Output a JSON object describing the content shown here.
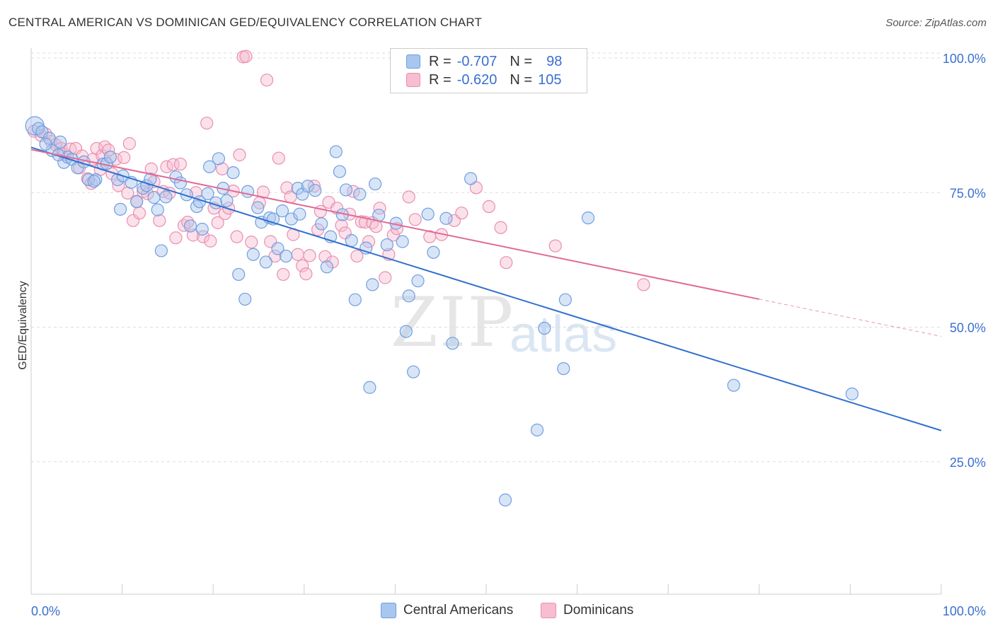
{
  "title": "CENTRAL AMERICAN VS DOMINICAN GED/EQUIVALENCY CORRELATION CHART",
  "source": "Source: ZipAtlas.com",
  "watermark": {
    "zip": "ZIP",
    "atlas": "atlas"
  },
  "legend": {
    "r_label": "R =",
    "n_label": "N =",
    "rows": [
      {
        "r": "-0.707",
        "n": "98",
        "color": "#a8c6ee",
        "border": "#6f9fe0"
      },
      {
        "r": "-0.620",
        "n": "105",
        "color": "#f7bdd0",
        "border": "#ea8fb0"
      }
    ]
  },
  "bottom_legend": [
    {
      "label": "Central Americans",
      "color": "#a8c6ee",
      "border": "#6f9fe0"
    },
    {
      "label": "Dominicans",
      "color": "#f7bdd0",
      "border": "#ea8fb0"
    }
  ],
  "chart_data": {
    "type": "scatter",
    "title": "CENTRAL AMERICAN VS DOMINICAN GED/EQUIVALENCY CORRELATION CHART",
    "xlabel": "",
    "ylabel": "GED/Equivalency",
    "xlim": [
      0,
      100
    ],
    "ylim": [
      0,
      105
    ],
    "x_tick_labels": [
      "0.0%",
      "100.0%"
    ],
    "y_ticks": [
      25,
      50,
      75,
      100
    ],
    "y_tick_labels": [
      "25.0%",
      "50.0%",
      "75.0%",
      "100.0%"
    ],
    "grid": true,
    "legend_position": "top-center",
    "series": [
      {
        "name": "Central Americans",
        "color": "#6f9fe0",
        "line_color": "#3070d0",
        "trend": {
          "x": [
            0,
            100
          ],
          "y": [
            83.4,
            30.8
          ]
        },
        "points": [
          [
            0.4,
            87.4
          ],
          [
            0.8,
            86.9
          ],
          [
            1.2,
            86.3
          ],
          [
            2,
            85.1
          ],
          [
            2.3,
            82.8
          ],
          [
            3.2,
            84.4
          ],
          [
            3.6,
            80.6
          ],
          [
            4,
            81.6
          ],
          [
            4.5,
            81.2
          ],
          [
            5.1,
            79.6
          ],
          [
            5.8,
            80.7
          ],
          [
            6.3,
            77.4
          ],
          [
            7.1,
            77.4
          ],
          [
            7.9,
            80.3
          ],
          [
            8.3,
            80.4
          ],
          [
            8.7,
            81.6
          ],
          [
            9.5,
            77.4
          ],
          [
            10.1,
            78.1
          ],
          [
            9.8,
            71.9
          ],
          [
            11,
            76.9
          ],
          [
            11.6,
            73.3
          ],
          [
            12.3,
            75.8
          ],
          [
            12.7,
            76.3
          ],
          [
            13.5,
            74.1
          ],
          [
            13.9,
            71.8
          ],
          [
            14.8,
            74.2
          ],
          [
            14.3,
            64.2
          ],
          [
            15.9,
            77.9
          ],
          [
            16.4,
            76.8
          ],
          [
            17.1,
            74.6
          ],
          [
            17.5,
            68.8
          ],
          [
            18.2,
            72.4
          ],
          [
            18.8,
            68.2
          ],
          [
            19.4,
            74.8
          ],
          [
            19.6,
            79.8
          ],
          [
            20.3,
            73.1
          ],
          [
            20.6,
            81.3
          ],
          [
            21.1,
            75.8
          ],
          [
            21.5,
            73.5
          ],
          [
            22.2,
            78.7
          ],
          [
            22.8,
            59.8
          ],
          [
            23.5,
            55.2
          ],
          [
            23.8,
            75.2
          ],
          [
            24.4,
            63.5
          ],
          [
            24.9,
            72.2
          ],
          [
            25.3,
            69.5
          ],
          [
            25.8,
            62.1
          ],
          [
            26.2,
            70.3
          ],
          [
            26.6,
            70.1
          ],
          [
            27.1,
            64.6
          ],
          [
            27.6,
            71.6
          ],
          [
            28,
            63.2
          ],
          [
            28.6,
            70.1
          ],
          [
            29.3,
            75.8
          ],
          [
            29.8,
            74.7
          ],
          [
            30.4,
            76.2
          ],
          [
            31.2,
            75.4
          ],
          [
            31.9,
            69.2
          ],
          [
            32.5,
            61.2
          ],
          [
            32.9,
            66.8
          ],
          [
            33.5,
            82.6
          ],
          [
            33.9,
            78.9
          ],
          [
            34.2,
            70.9
          ],
          [
            34.6,
            75.5
          ],
          [
            35.2,
            66.1
          ],
          [
            35.6,
            55.1
          ],
          [
            36.1,
            74.7
          ],
          [
            36.8,
            64.7
          ],
          [
            37.2,
            38.8
          ],
          [
            37.5,
            57.9
          ],
          [
            37.8,
            76.6
          ],
          [
            38.2,
            70.8
          ],
          [
            39.1,
            65.3
          ],
          [
            40.1,
            69.3
          ],
          [
            40.8,
            65.9
          ],
          [
            41.2,
            49.2
          ],
          [
            41.5,
            55.8
          ],
          [
            42,
            41.7
          ],
          [
            42.5,
            58.6
          ],
          [
            43.6,
            71
          ],
          [
            44.2,
            63.9
          ],
          [
            45.6,
            70.2
          ],
          [
            46.3,
            47
          ],
          [
            48.3,
            77.6
          ],
          [
            52.1,
            17.9
          ],
          [
            55.6,
            30.9
          ],
          [
            56.4,
            49.8
          ],
          [
            58.5,
            42.3
          ],
          [
            58.7,
            55.1
          ],
          [
            61.2,
            70.3
          ],
          [
            77.2,
            39.2
          ],
          [
            90.2,
            37.6
          ],
          [
            1.6,
            84
          ],
          [
            6.9,
            77.1
          ],
          [
            3,
            82
          ],
          [
            13.1,
            77.5
          ],
          [
            18.5,
            73.3
          ],
          [
            29.5,
            71
          ]
        ]
      },
      {
        "name": "Dominicans",
        "color": "#ea8fb0",
        "line_color": "#e06a95",
        "trend": {
          "x": [
            0,
            80
          ],
          "y": [
            83,
            55.2
          ]
        },
        "trend_dashed": {
          "x": [
            80,
            100
          ],
          "y": [
            55.2,
            48.3
          ]
        },
        "points": [
          [
            0.3,
            86.4
          ],
          [
            1.1,
            85.6
          ],
          [
            1.6,
            85.9
          ],
          [
            2.2,
            84.5
          ],
          [
            2.7,
            83.9
          ],
          [
            3.3,
            83.2
          ],
          [
            3.7,
            82.1
          ],
          [
            4.3,
            83.1
          ],
          [
            4.9,
            83.2
          ],
          [
            5.3,
            79.6
          ],
          [
            5.6,
            81.8
          ],
          [
            6.2,
            77.6
          ],
          [
            6.6,
            76.7
          ],
          [
            6.8,
            81.2
          ],
          [
            7.2,
            83.2
          ],
          [
            7.8,
            81.9
          ],
          [
            7.6,
            79.3
          ],
          [
            8.1,
            83.5
          ],
          [
            8.5,
            82.9
          ],
          [
            8.9,
            78.5
          ],
          [
            9.3,
            81.2
          ],
          [
            9.6,
            76.3
          ],
          [
            10.2,
            81.5
          ],
          [
            10.6,
            74.9
          ],
          [
            10.8,
            84.1
          ],
          [
            11.2,
            69.8
          ],
          [
            11.6,
            73.4
          ],
          [
            11.9,
            71.2
          ],
          [
            12.3,
            75.2
          ],
          [
            12.8,
            74.8
          ],
          [
            13.2,
            79.4
          ],
          [
            13.5,
            77
          ],
          [
            14.1,
            69.8
          ],
          [
            14.5,
            75.2
          ],
          [
            14.9,
            79.8
          ],
          [
            15.2,
            74.9
          ],
          [
            15.6,
            80.2
          ],
          [
            15.9,
            66.6
          ],
          [
            16.4,
            80.3
          ],
          [
            16.8,
            68.9
          ],
          [
            17.2,
            69.5
          ],
          [
            17.8,
            67.1
          ],
          [
            18.1,
            75
          ],
          [
            18.9,
            66.8
          ],
          [
            19.3,
            87.9
          ],
          [
            19.7,
            66
          ],
          [
            20.1,
            72.1
          ],
          [
            20.5,
            69.4
          ],
          [
            21,
            79.4
          ],
          [
            21.3,
            71.1
          ],
          [
            21.7,
            72.1
          ],
          [
            22.2,
            75.3
          ],
          [
            22.6,
            66.8
          ],
          [
            22.9,
            82
          ],
          [
            23.3,
            100.2
          ],
          [
            23.6,
            100.3
          ],
          [
            24.2,
            65.8
          ],
          [
            25.1,
            73.1
          ],
          [
            25.5,
            75.1
          ],
          [
            25.9,
            95.9
          ],
          [
            26.3,
            65.9
          ],
          [
            26.8,
            63.2
          ],
          [
            27.2,
            81.4
          ],
          [
            27.7,
            59.8
          ],
          [
            28.1,
            75.9
          ],
          [
            28.5,
            74.2
          ],
          [
            28.8,
            67.2
          ],
          [
            29.3,
            63.5
          ],
          [
            29.8,
            61.4
          ],
          [
            30.2,
            59.9
          ],
          [
            30.6,
            63.3
          ],
          [
            31.1,
            76.2
          ],
          [
            31.5,
            68.1
          ],
          [
            31.8,
            71.5
          ],
          [
            32.3,
            63.1
          ],
          [
            32.7,
            73.2
          ],
          [
            33.1,
            62.1
          ],
          [
            33.6,
            72.1
          ],
          [
            34.1,
            68.9
          ],
          [
            34.5,
            67.5
          ],
          [
            35,
            71
          ],
          [
            35.4,
            75.2
          ],
          [
            35.8,
            63.2
          ],
          [
            36.3,
            69.6
          ],
          [
            36.7,
            69.5
          ],
          [
            37.1,
            65.9
          ],
          [
            37.5,
            69.4
          ],
          [
            37.9,
            68.7
          ],
          [
            38.3,
            72.1
          ],
          [
            38.9,
            59.2
          ],
          [
            39.3,
            63.5
          ],
          [
            39.8,
            67.1
          ],
          [
            40.2,
            68.3
          ],
          [
            41.5,
            74.2
          ],
          [
            42.2,
            70
          ],
          [
            43.8,
            66.8
          ],
          [
            45.1,
            67.2
          ],
          [
            46.5,
            69.8
          ],
          [
            47.3,
            71.2
          ],
          [
            48.9,
            75.9
          ],
          [
            50.3,
            72.4
          ],
          [
            51.6,
            68.5
          ],
          [
            52.2,
            62
          ],
          [
            57.6,
            65.1
          ],
          [
            67.3,
            57.9
          ]
        ]
      }
    ]
  }
}
